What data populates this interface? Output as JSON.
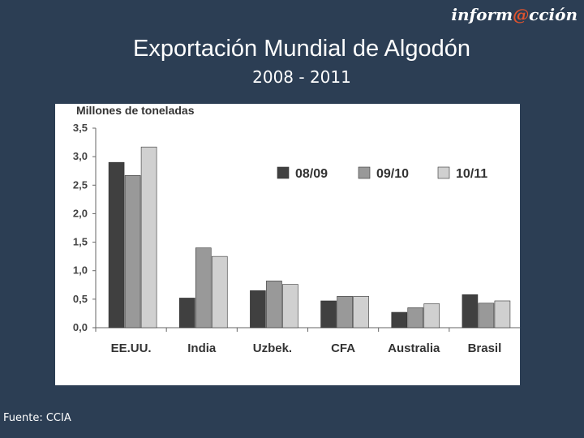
{
  "header": {
    "brand_prefix": "inform",
    "brand_at": "@",
    "brand_suffix": "cción",
    "title": "Exportación Mundial de Algodón",
    "subtitle": "2008 - 2011"
  },
  "footer": {
    "source": "Fuente: CCIA"
  },
  "colors": {
    "s1": "#404040",
    "s2": "#999999",
    "s3": "#d0d0d0"
  },
  "chart_data": {
    "type": "bar",
    "title": "",
    "ylabel": "Millones de toneladas",
    "xlabel": "",
    "ylim": [
      0,
      3.5
    ],
    "yticks": [
      0,
      0.5,
      1.0,
      1.5,
      2.0,
      2.5,
      3.0,
      3.5
    ],
    "ytick_labels": [
      "0,0",
      "0,5",
      "1,0",
      "1,5",
      "2,0",
      "2,5",
      "3,0",
      "3,5"
    ],
    "categories": [
      "EE.UU.",
      "India",
      "Uzbek.",
      "CFA",
      "Australia",
      "Brasil"
    ],
    "series": [
      {
        "name": "08/09",
        "values": [
          2.9,
          0.52,
          0.65,
          0.47,
          0.27,
          0.58
        ]
      },
      {
        "name": "09/10",
        "values": [
          2.67,
          1.4,
          0.82,
          0.55,
          0.35,
          0.43
        ]
      },
      {
        "name": "10/11",
        "values": [
          3.17,
          1.25,
          0.76,
          0.55,
          0.42,
          0.47
        ]
      }
    ],
    "legend_position": "top-right",
    "grid": false
  }
}
